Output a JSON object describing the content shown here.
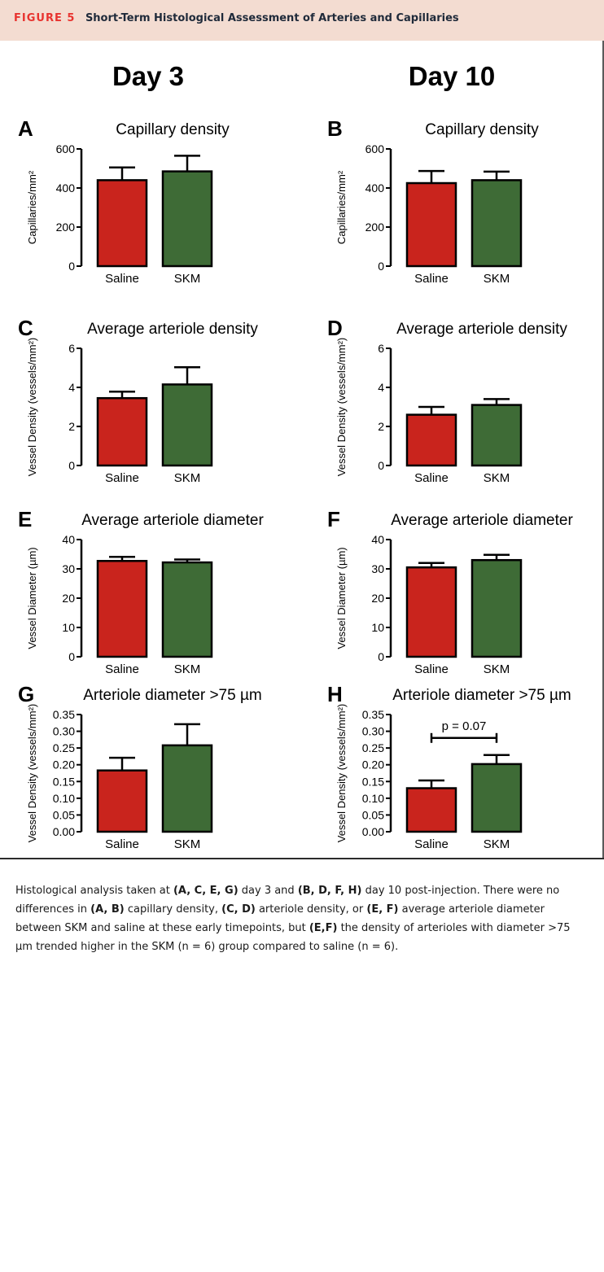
{
  "header": {
    "figure_label": "FIGURE 5",
    "title": "Short-Term Histological Assessment of Arteries and Capillaries"
  },
  "columns": {
    "left_heading": "Day 3",
    "right_heading": "Day 10"
  },
  "colors": {
    "saline": "#c9241d",
    "skm": "#3e6b36",
    "header_bg": "#f3dcd1",
    "figure_label": "#e8332f"
  },
  "chart_data": [
    {
      "panel": "A",
      "type": "bar",
      "title": "Capillary density",
      "ylabel": "Capillaries/mm²",
      "categories": [
        "Saline",
        "SKM"
      ],
      "values": [
        440,
        485
      ],
      "errors": [
        65,
        80
      ],
      "ylim": [
        0,
        600
      ],
      "yticks": [
        "0",
        "200",
        "400",
        "600"
      ],
      "yticks_values": [
        0,
        200,
        400,
        600
      ]
    },
    {
      "panel": "B",
      "type": "bar",
      "title": "Capillary density",
      "ylabel": "Capillaries/mm²",
      "categories": [
        "Saline",
        "SKM"
      ],
      "values": [
        425,
        440
      ],
      "errors": [
        62,
        44
      ],
      "ylim": [
        0,
        600
      ],
      "yticks": [
        "0",
        "200",
        "400",
        "600"
      ],
      "yticks_values": [
        0,
        200,
        400,
        600
      ]
    },
    {
      "panel": "C",
      "type": "bar",
      "title": "Average arteriole density",
      "ylabel": "Vessel Density (vessels/mm²)",
      "categories": [
        "Saline",
        "SKM"
      ],
      "values": [
        3.45,
        4.15
      ],
      "errors": [
        0.33,
        0.88
      ],
      "ylim": [
        0,
        6
      ],
      "yticks": [
        "0",
        "2",
        "4",
        "6"
      ],
      "yticks_values": [
        0,
        2,
        4,
        6
      ]
    },
    {
      "panel": "D",
      "type": "bar",
      "title": "Average arteriole density",
      "ylabel": "Vessel Density (vessels/mm²)",
      "categories": [
        "Saline",
        "SKM"
      ],
      "values": [
        2.6,
        3.1
      ],
      "errors": [
        0.4,
        0.3
      ],
      "ylim": [
        0,
        6
      ],
      "yticks": [
        "0",
        "2",
        "4",
        "6"
      ],
      "yticks_values": [
        0,
        2,
        4,
        6
      ]
    },
    {
      "panel": "E",
      "type": "bar",
      "title": "Average arteriole diameter",
      "ylabel": "Vessel Diameter (µm)",
      "categories": [
        "Saline",
        "SKM"
      ],
      "values": [
        32.7,
        32.2
      ],
      "errors": [
        1.4,
        1.0
      ],
      "ylim": [
        0,
        40
      ],
      "yticks": [
        "0",
        "10",
        "20",
        "30",
        "40"
      ],
      "yticks_values": [
        0,
        10,
        20,
        30,
        40
      ]
    },
    {
      "panel": "F",
      "type": "bar",
      "title": "Average arteriole diameter",
      "ylabel": "Vessel Diameter (µm)",
      "categories": [
        "Saline",
        "SKM"
      ],
      "values": [
        30.5,
        33.0
      ],
      "errors": [
        1.5,
        1.8
      ],
      "ylim": [
        0,
        40
      ],
      "yticks": [
        "0",
        "10",
        "20",
        "30",
        "40"
      ],
      "yticks_values": [
        0,
        10,
        20,
        30,
        40
      ]
    },
    {
      "panel": "G",
      "type": "bar",
      "title": "Arteriole diameter >75 µm",
      "ylabel": "Vessel Density (vessels/mm²)",
      "categories": [
        "Saline",
        "SKM"
      ],
      "values": [
        0.183,
        0.258
      ],
      "errors": [
        0.038,
        0.063
      ],
      "ylim": [
        0,
        0.35
      ],
      "yticks": [
        "0.00",
        "0.05",
        "0.10",
        "0.15",
        "0.20",
        "0.25",
        "0.30",
        "0.35"
      ],
      "yticks_values": [
        0,
        0.05,
        0.1,
        0.15,
        0.2,
        0.25,
        0.3,
        0.35
      ]
    },
    {
      "panel": "H",
      "type": "bar",
      "title": "Arteriole diameter >75 µm",
      "ylabel": "Vessel Density (vessels/mm²)",
      "categories": [
        "Saline",
        "SKM"
      ],
      "values": [
        0.13,
        0.202
      ],
      "errors": [
        0.023,
        0.027
      ],
      "ylim": [
        0,
        0.35
      ],
      "yticks": [
        "0.00",
        "0.05",
        "0.10",
        "0.15",
        "0.20",
        "0.25",
        "0.30",
        "0.35"
      ],
      "yticks_values": [
        0,
        0.05,
        0.1,
        0.15,
        0.2,
        0.25,
        0.3,
        0.35
      ],
      "annotation": "p = 0.07"
    }
  ],
  "caption": {
    "parts": [
      {
        "t": "Histological analysis taken at ",
        "b": false
      },
      {
        "t": "(A, C, E, G)",
        "b": true
      },
      {
        "t": " day 3 and ",
        "b": false
      },
      {
        "t": "(B, D, F, H)",
        "b": true
      },
      {
        "t": " day 10 post-injection. There were no differences in ",
        "b": false
      },
      {
        "t": "(A, B)",
        "b": true
      },
      {
        "t": " capillary density, ",
        "b": false
      },
      {
        "t": "(C, D)",
        "b": true
      },
      {
        "t": " arteriole density, or ",
        "b": false
      },
      {
        "t": "(E, F)",
        "b": true
      },
      {
        "t": " average arteriole diameter between SKM and saline at these early timepoints, but ",
        "b": false
      },
      {
        "t": "(E,F)",
        "b": true
      },
      {
        "t": " the density of arterioles with diameter >75 µm trended higher in the SKM (n = 6) group compared to saline (n = 6).",
        "b": false
      }
    ]
  }
}
